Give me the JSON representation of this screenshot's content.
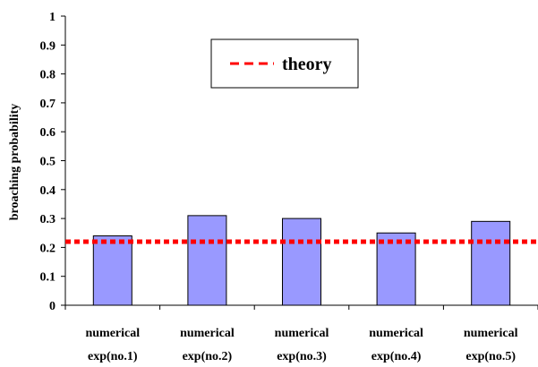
{
  "chart_data": {
    "type": "bar",
    "title": "",
    "xlabel": "",
    "ylabel": "broaching probability",
    "ylim": [
      0,
      1
    ],
    "yticks": [
      "0",
      "0.1",
      "0.2",
      "0.3",
      "0.4",
      "0.5",
      "0.6",
      "0.7",
      "0.8",
      "0.9",
      "1"
    ],
    "categories": [
      [
        "numerical",
        "exp(no.1)"
      ],
      [
        "numerical",
        "exp(no.2)"
      ],
      [
        "numerical",
        "exp(no.3)"
      ],
      [
        "numerical",
        "exp(no.4)"
      ],
      [
        "numerical",
        "exp(no.5)"
      ]
    ],
    "series": [
      {
        "values": [
          0.24,
          0.31,
          0.3,
          0.25,
          0.29
        ],
        "color": "#9999ff"
      }
    ],
    "reference_line": {
      "name": "theory",
      "value": 0.22,
      "color": "#ff0000",
      "style": "dashed"
    },
    "legend": {
      "position": "top-center",
      "entries": [
        "theory"
      ]
    },
    "grid": false
  }
}
